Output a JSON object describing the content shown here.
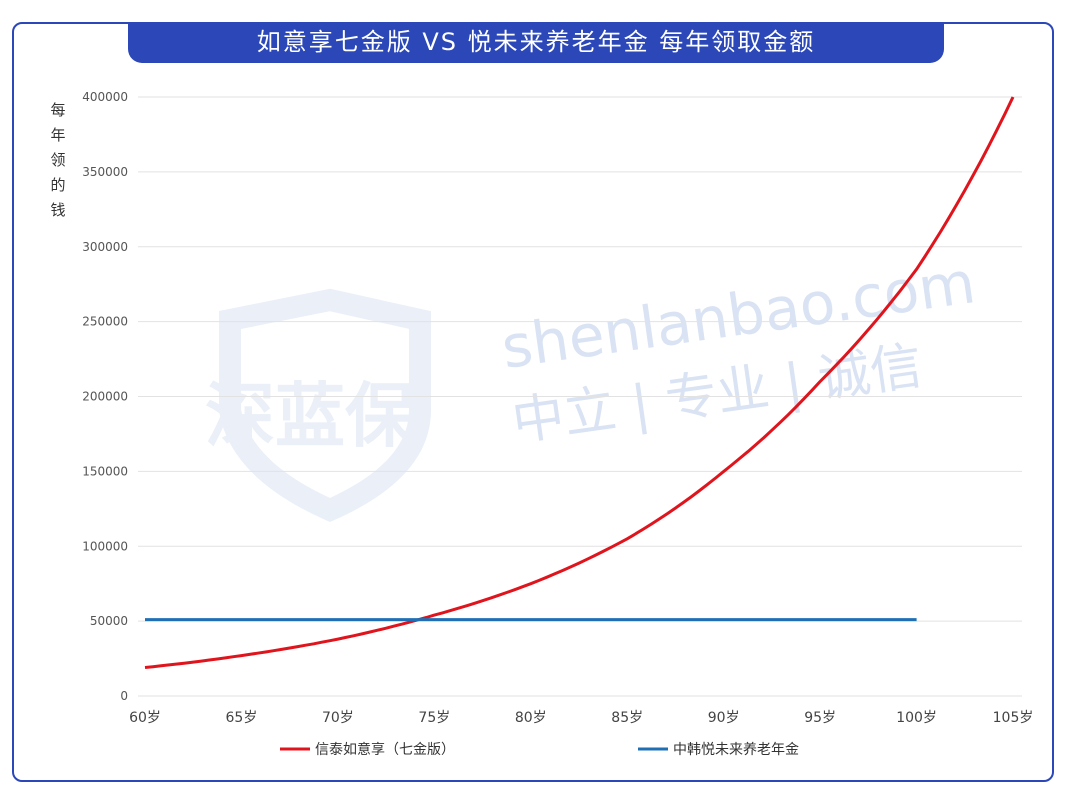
{
  "title": "如意享七金版 VS 悦未来养老年金 每年领取金额",
  "colors": {
    "frame": "#2b47b8",
    "series1": "#e0141c",
    "series2": "#1f6fb5",
    "grid": "#e2e2e2"
  },
  "watermark": {
    "domain": "shenlanbao.com",
    "slogan": "中立 | 专业 | 诚信",
    "logo": "深蓝保"
  },
  "chart_data": {
    "type": "line",
    "title": "如意享七金版 VS 悦未来养老年金 每年领取金额",
    "ylabel": "每年领的钱",
    "xlabel": "",
    "categories": [
      "60岁",
      "65岁",
      "70岁",
      "75岁",
      "80岁",
      "85岁",
      "90岁",
      "95岁",
      "100岁",
      "105岁"
    ],
    "ylim": [
      0,
      400000
    ],
    "yticks": [
      0,
      50000,
      100000,
      150000,
      200000,
      250000,
      300000,
      350000,
      400000
    ],
    "grid": "horizontal",
    "legend_position": "bottom",
    "series": [
      {
        "name": "信泰如意享（七金版）",
        "color": "#e0141c",
        "values": [
          19000,
          27000,
          38000,
          54000,
          75000,
          105000,
          150000,
          210000,
          285000,
          400000
        ]
      },
      {
        "name": "中韩悦未来养老年金",
        "color": "#1f6fb5",
        "values": [
          51000,
          51000,
          51000,
          51000,
          51000,
          51000,
          51000,
          51000,
          51000,
          null
        ]
      }
    ]
  }
}
